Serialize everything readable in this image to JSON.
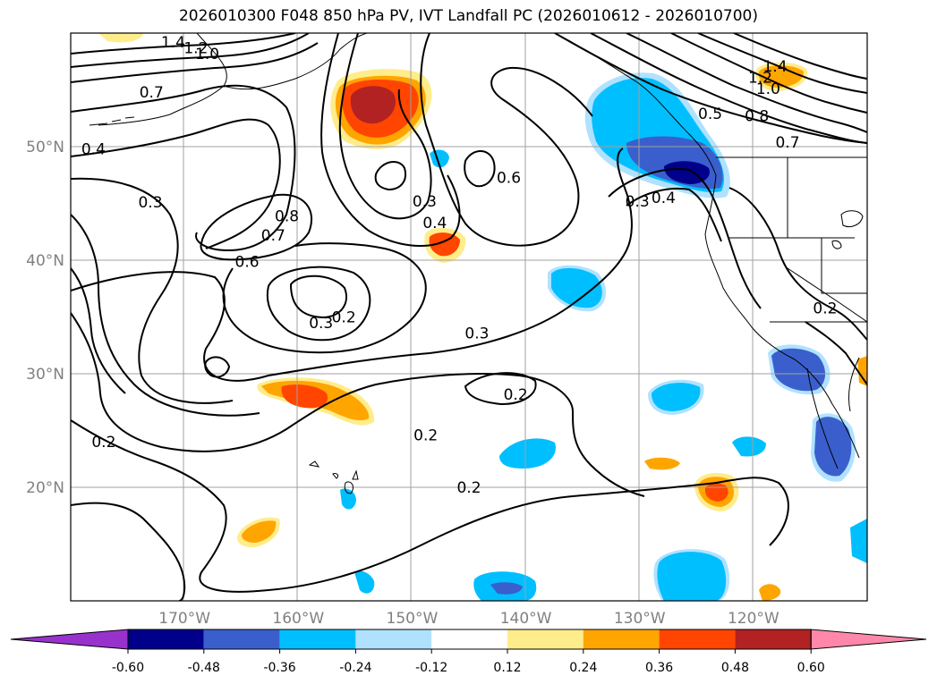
{
  "title": "2026010300 F048 850 hPa PV, IVT Landfall PC (2026010612 - 2026010700)",
  "map": {
    "lon_range": [
      -180,
      -110
    ],
    "lat_range": [
      10,
      60
    ],
    "lat_ticks": [
      {
        "lat": 20,
        "label": "20°N"
      },
      {
        "lat": 30,
        "label": "30°N"
      },
      {
        "lat": 40,
        "label": "40°N"
      },
      {
        "lat": 50,
        "label": "50°N"
      }
    ],
    "lon_ticks": [
      {
        "lon": -170,
        "label": "170°W"
      },
      {
        "lon": -160,
        "label": "160°W"
      },
      {
        "lon": -150,
        "label": "150°W"
      },
      {
        "lon": -140,
        "label": "140°W"
      },
      {
        "lon": -130,
        "label": "130°W"
      },
      {
        "lon": -120,
        "label": "120°W"
      }
    ],
    "grid": true,
    "contour_labels": [
      {
        "text": "1.4",
        "lon": -171.0,
        "lat": 59.2
      },
      {
        "text": "1.2",
        "lon": -169.0,
        "lat": 58.7
      },
      {
        "text": "1.0",
        "lon": -168.0,
        "lat": 58.2
      },
      {
        "text": "0.7",
        "lon": -172.9,
        "lat": 54.8
      },
      {
        "text": "0.4",
        "lon": -178.0,
        "lat": 49.8
      },
      {
        "text": "0.3",
        "lon": -173.0,
        "lat": 45.1
      },
      {
        "text": "0.8",
        "lon": -161.0,
        "lat": 43.9
      },
      {
        "text": "0.7",
        "lon": -162.2,
        "lat": 42.2
      },
      {
        "text": "0.6",
        "lon": -164.5,
        "lat": 39.9
      },
      {
        "text": "0.3",
        "lon": -148.9,
        "lat": 45.2
      },
      {
        "text": "0.4",
        "lon": -148.0,
        "lat": 43.3
      },
      {
        "text": "0.6",
        "lon": -141.5,
        "lat": 47.3
      },
      {
        "text": "0.3",
        "lon": -158.0,
        "lat": 34.5
      },
      {
        "text": "0.2",
        "lon": -156.0,
        "lat": 35.0
      },
      {
        "text": "0.3",
        "lon": -144.3,
        "lat": 33.6
      },
      {
        "text": "0.2",
        "lon": -140.9,
        "lat": 28.2
      },
      {
        "text": "0.2",
        "lon": -148.8,
        "lat": 24.6
      },
      {
        "text": "0.2",
        "lon": -177.1,
        "lat": 24.0
      },
      {
        "text": "0.2",
        "lon": -145.0,
        "lat": 20.0
      },
      {
        "text": "0.3",
        "lon": -130.2,
        "lat": 45.2
      },
      {
        "text": "0.4",
        "lon": -127.9,
        "lat": 45.5
      },
      {
        "text": "0.5",
        "lon": -123.8,
        "lat": 52.9
      },
      {
        "text": "0.8",
        "lon": -119.7,
        "lat": 52.7
      },
      {
        "text": "0.7",
        "lon": -117.0,
        "lat": 50.4
      },
      {
        "text": "1.4",
        "lon": -118.1,
        "lat": 57.1
      },
      {
        "text": "1.2",
        "lon": -119.4,
        "lat": 56.1
      },
      {
        "text": "1.0",
        "lon": -118.7,
        "lat": 55.1
      },
      {
        "text": "0.2",
        "lon": -113.7,
        "lat": 35.8
      }
    ]
  },
  "colorbar": {
    "colors": [
      "#9932CC",
      "#00008B",
      "#3A5FCD",
      "#00BFFF",
      "#B0E2FF",
      "#FFFFFF",
      "#FFEC8B",
      "#FFA500",
      "#FF4500",
      "#B22222",
      "#FF88AA"
    ],
    "labels": [
      "-0.60",
      "-0.48",
      "-0.36",
      "-0.24",
      "-0.12",
      "0.12",
      "0.24",
      "0.36",
      "0.48",
      "0.60"
    ]
  }
}
